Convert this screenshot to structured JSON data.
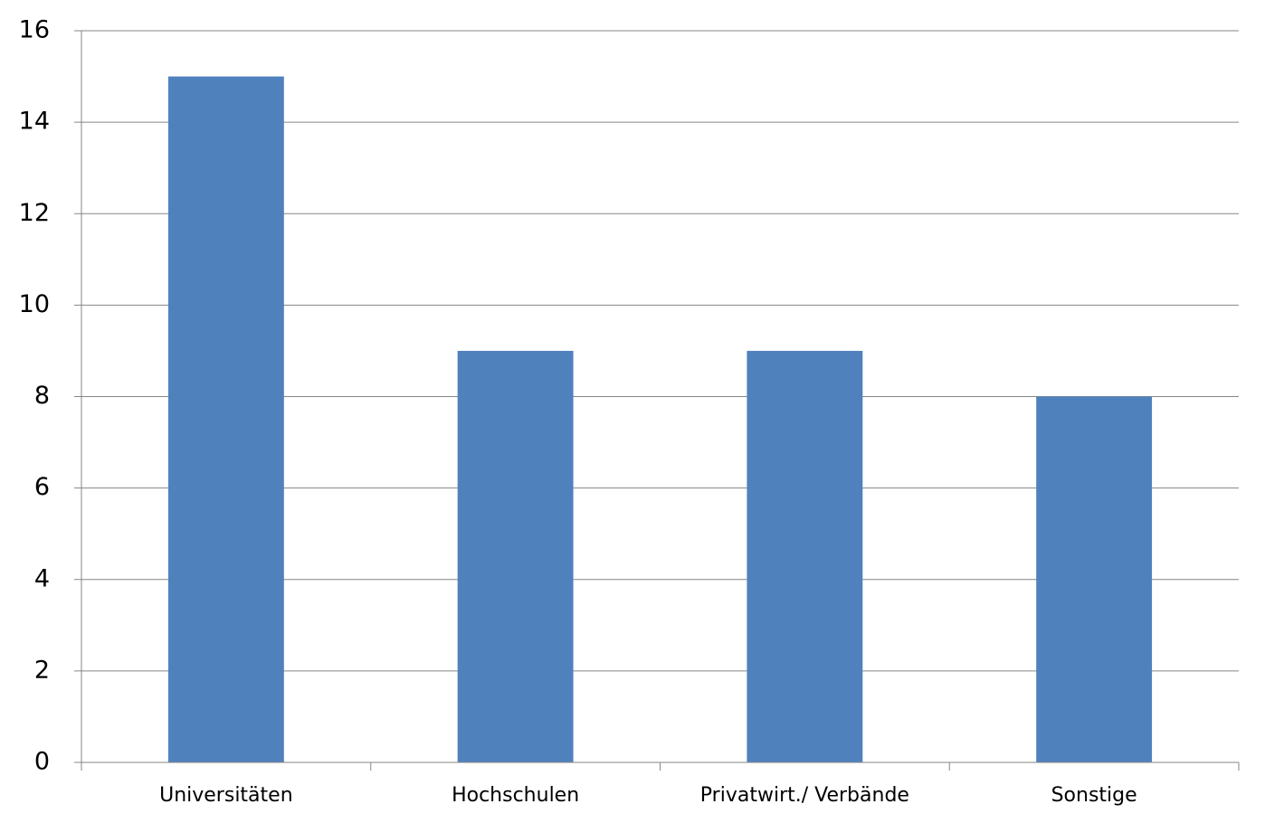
{
  "chart_data": {
    "type": "bar",
    "categories": [
      "Universitäten",
      "Hochschulen",
      "Privatwirt./ Verbände",
      "Sonstige"
    ],
    "values": [
      15,
      9,
      9,
      8
    ],
    "color": "#4f81bd",
    "ylim": [
      0,
      16
    ],
    "yticks": [
      0,
      2,
      4,
      6,
      8,
      10,
      12,
      14,
      16
    ],
    "grid": true
  }
}
